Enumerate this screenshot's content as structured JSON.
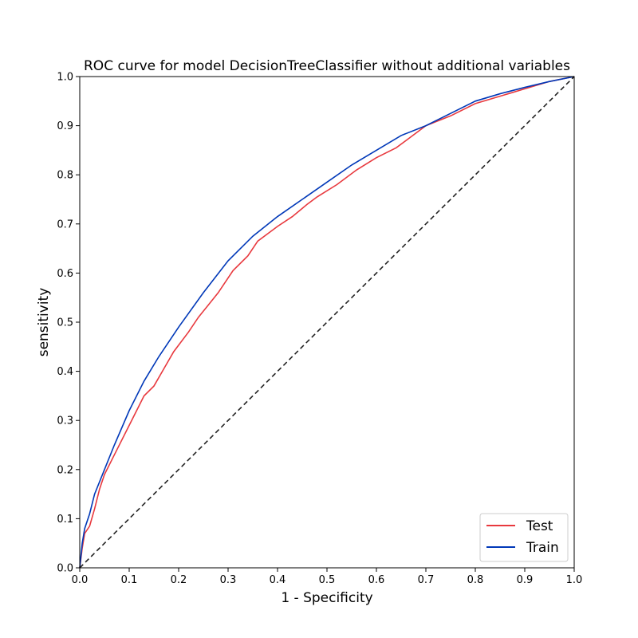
{
  "chart_data": {
    "type": "line",
    "title": "ROC curve for model DecisionTreeClassifier without additional variables",
    "xlabel": "1 - Specificity",
    "ylabel": "sensitivity",
    "xlim": [
      0,
      1
    ],
    "ylim": [
      0,
      1
    ],
    "xticks": [
      "0.0",
      "0.1",
      "0.2",
      "0.3",
      "0.4",
      "0.5",
      "0.6",
      "0.7",
      "0.8",
      "0.9",
      "1.0"
    ],
    "yticks": [
      "0.0",
      "0.1",
      "0.2",
      "0.3",
      "0.4",
      "0.5",
      "0.6",
      "0.7",
      "0.8",
      "0.9",
      "1.0"
    ],
    "grid": false,
    "legend": "bottom-right",
    "series": [
      {
        "name": "Test",
        "color": "#e8393e",
        "style": "solid",
        "x": [
          0.0,
          0.005,
          0.01,
          0.02,
          0.03,
          0.04,
          0.05,
          0.07,
          0.1,
          0.12,
          0.13,
          0.15,
          0.17,
          0.19,
          0.22,
          0.24,
          0.26,
          0.28,
          0.31,
          0.34,
          0.36,
          0.38,
          0.4,
          0.43,
          0.46,
          0.48,
          0.52,
          0.56,
          0.6,
          0.64,
          0.66,
          0.68,
          0.7,
          0.75,
          0.8,
          0.85,
          0.9,
          0.95,
          1.0
        ],
        "y": [
          0.0,
          0.04,
          0.07,
          0.085,
          0.12,
          0.16,
          0.19,
          0.23,
          0.29,
          0.33,
          0.35,
          0.37,
          0.405,
          0.44,
          0.48,
          0.51,
          0.535,
          0.56,
          0.605,
          0.635,
          0.665,
          0.68,
          0.695,
          0.715,
          0.74,
          0.755,
          0.78,
          0.81,
          0.835,
          0.855,
          0.87,
          0.885,
          0.9,
          0.92,
          0.945,
          0.96,
          0.975,
          0.99,
          1.0
        ]
      },
      {
        "name": "Train",
        "color": "#0038b8",
        "style": "solid",
        "x": [
          0.0,
          0.005,
          0.01,
          0.02,
          0.03,
          0.05,
          0.07,
          0.1,
          0.13,
          0.16,
          0.2,
          0.25,
          0.3,
          0.35,
          0.4,
          0.45,
          0.5,
          0.55,
          0.6,
          0.65,
          0.7,
          0.75,
          0.8,
          0.85,
          0.9,
          0.95,
          1.0
        ],
        "y": [
          0.0,
          0.05,
          0.08,
          0.11,
          0.15,
          0.2,
          0.25,
          0.32,
          0.38,
          0.43,
          0.49,
          0.56,
          0.625,
          0.675,
          0.715,
          0.75,
          0.785,
          0.82,
          0.85,
          0.88,
          0.9,
          0.925,
          0.95,
          0.965,
          0.978,
          0.99,
          1.0
        ]
      },
      {
        "name": "",
        "color": "#222222",
        "style": "dashed",
        "x": [
          0,
          1
        ],
        "y": [
          0,
          1
        ]
      }
    ]
  }
}
